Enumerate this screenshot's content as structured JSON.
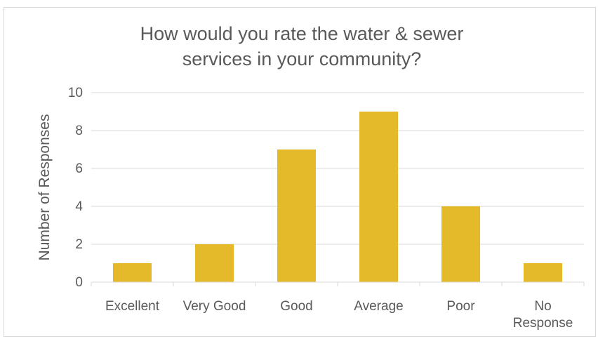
{
  "chart_data": {
    "type": "bar",
    "title_lines": [
      "How would you rate the water & sewer",
      "services in your community?"
    ],
    "ylabel": "Number of Responses",
    "xlabel": "",
    "categories": [
      "Excellent",
      "Very Good",
      "Good",
      "Average",
      "Poor",
      "No Response"
    ],
    "category_lines": [
      [
        "Excellent"
      ],
      [
        "Very Good"
      ],
      [
        "Good"
      ],
      [
        "Average"
      ],
      [
        "Poor"
      ],
      [
        "No",
        "Response"
      ]
    ],
    "values": [
      1,
      2,
      7,
      9,
      4,
      1
    ],
    "ylim": [
      0,
      10
    ],
    "yticks": [
      "0",
      "2",
      "4",
      "6",
      "8",
      "10"
    ],
    "grid": true,
    "legend": "none",
    "bar_color": "#E5BA2A",
    "grid_color": "#d9d9d9"
  }
}
